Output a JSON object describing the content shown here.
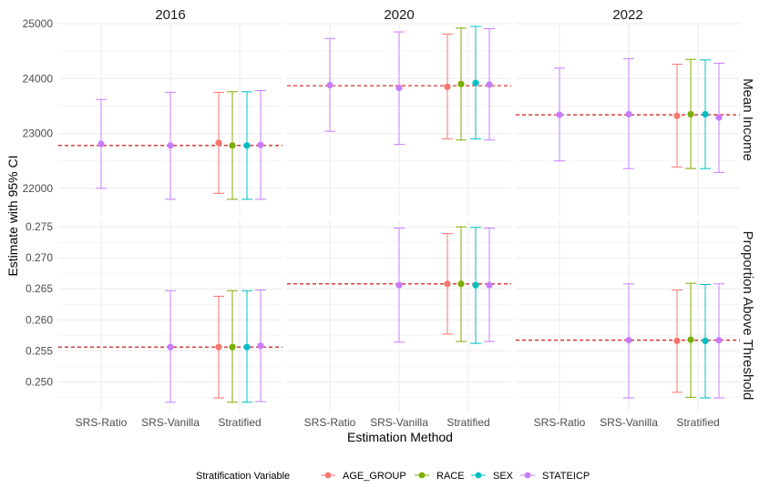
{
  "chart_data": {
    "type": "scatter",
    "subtype": "point-errorbar-facet",
    "xlabel": "Estimation Method",
    "ylabel": "Estimate with 95% CI",
    "categories": [
      "SRS-Ratio",
      "SRS-Vanilla",
      "Stratified"
    ],
    "columns": [
      "2016",
      "2020",
      "2022"
    ],
    "rows": [
      {
        "key": "income",
        "label": "Mean Income",
        "ylim": [
          21500,
          25000
        ],
        "ticks": [
          22000,
          23000,
          24000,
          25000
        ],
        "tick_labels": [
          "22000",
          "23000",
          "24000",
          "25000"
        ]
      },
      {
        "key": "prop",
        "label": "Proportion Above Threshold",
        "ylim": [
          0.2452,
          0.2762
        ],
        "ticks": [
          0.25,
          0.255,
          0.26,
          0.265,
          0.27,
          0.275
        ],
        "tick_labels": [
          "0.250",
          "0.255",
          "0.260",
          "0.265",
          "0.270",
          "0.275"
        ]
      }
    ],
    "legend": {
      "title": "Stratification Variable",
      "position": "bottom",
      "entries": [
        {
          "name": "AGE_GROUP",
          "color": "#F8766D"
        },
        {
          "name": "RACE",
          "color": "#7CAE00"
        },
        {
          "name": "SEX",
          "color": "#00BFC4"
        },
        {
          "name": "STATEICP",
          "color": "#C77CFF"
        }
      ]
    },
    "reference_line_color": "#CC0000",
    "panels": [
      {
        "row": "income",
        "column": "2016",
        "reference": 22780,
        "points": [
          {
            "category": "SRS-Ratio",
            "series": "STATEICP",
            "estimate": 22810,
            "lower": 22000,
            "upper": 23620
          },
          {
            "category": "SRS-Vanilla",
            "series": "STATEICP",
            "estimate": 22780,
            "lower": 21800,
            "upper": 23750
          },
          {
            "category": "Stratified",
            "series": "AGE_GROUP",
            "estimate": 22830,
            "lower": 21910,
            "upper": 23750
          },
          {
            "category": "Stratified",
            "series": "RACE",
            "estimate": 22780,
            "lower": 21800,
            "upper": 23760
          },
          {
            "category": "Stratified",
            "series": "SEX",
            "estimate": 22780,
            "lower": 21800,
            "upper": 23760
          },
          {
            "category": "Stratified",
            "series": "STATEICP",
            "estimate": 22790,
            "lower": 21800,
            "upper": 23780
          }
        ]
      },
      {
        "row": "income",
        "column": "2020",
        "reference": 23870,
        "points": [
          {
            "category": "SRS-Ratio",
            "series": "STATEICP",
            "estimate": 23880,
            "lower": 23040,
            "upper": 24730
          },
          {
            "category": "SRS-Vanilla",
            "series": "STATEICP",
            "estimate": 23830,
            "lower": 22800,
            "upper": 24850
          },
          {
            "category": "Stratified",
            "series": "AGE_GROUP",
            "estimate": 23850,
            "lower": 22900,
            "upper": 24810
          },
          {
            "category": "Stratified",
            "series": "RACE",
            "estimate": 23900,
            "lower": 22880,
            "upper": 24920
          },
          {
            "category": "Stratified",
            "series": "SEX",
            "estimate": 23920,
            "lower": 22900,
            "upper": 24950
          },
          {
            "category": "Stratified",
            "series": "STATEICP",
            "estimate": 23890,
            "lower": 22880,
            "upper": 24910
          }
        ]
      },
      {
        "row": "income",
        "column": "2022",
        "reference": 23340,
        "points": [
          {
            "category": "SRS-Ratio",
            "series": "STATEICP",
            "estimate": 23340,
            "lower": 22500,
            "upper": 24190
          },
          {
            "category": "SRS-Vanilla",
            "series": "STATEICP",
            "estimate": 23350,
            "lower": 22360,
            "upper": 24360
          },
          {
            "category": "Stratified",
            "series": "AGE_GROUP",
            "estimate": 23320,
            "lower": 22390,
            "upper": 24260
          },
          {
            "category": "Stratified",
            "series": "RACE",
            "estimate": 23350,
            "lower": 22360,
            "upper": 24350
          },
          {
            "category": "Stratified",
            "series": "SEX",
            "estimate": 23350,
            "lower": 22360,
            "upper": 24340
          },
          {
            "category": "Stratified",
            "series": "STATEICP",
            "estimate": 23290,
            "lower": 22290,
            "upper": 24280
          }
        ]
      },
      {
        "row": "prop",
        "column": "2016",
        "reference": 0.2556,
        "points": [
          {
            "category": "SRS-Vanilla",
            "series": "STATEICP",
            "estimate": 0.2556,
            "lower": 0.2467,
            "upper": 0.2647
          },
          {
            "category": "Stratified",
            "series": "AGE_GROUP",
            "estimate": 0.2556,
            "lower": 0.2474,
            "upper": 0.2638
          },
          {
            "category": "Stratified",
            "series": "RACE",
            "estimate": 0.2556,
            "lower": 0.2467,
            "upper": 0.2647
          },
          {
            "category": "Stratified",
            "series": "SEX",
            "estimate": 0.2556,
            "lower": 0.2467,
            "upper": 0.2647
          },
          {
            "category": "Stratified",
            "series": "STATEICP",
            "estimate": 0.2558,
            "lower": 0.2468,
            "upper": 0.2648
          }
        ]
      },
      {
        "row": "prop",
        "column": "2020",
        "reference": 0.2658,
        "points": [
          {
            "category": "SRS-Vanilla",
            "series": "STATEICP",
            "estimate": 0.2656,
            "lower": 0.2564,
            "upper": 0.2748
          },
          {
            "category": "Stratified",
            "series": "AGE_GROUP",
            "estimate": 0.2658,
            "lower": 0.2577,
            "upper": 0.2739
          },
          {
            "category": "Stratified",
            "series": "RACE",
            "estimate": 0.2658,
            "lower": 0.2565,
            "upper": 0.275
          },
          {
            "category": "Stratified",
            "series": "SEX",
            "estimate": 0.2656,
            "lower": 0.2562,
            "upper": 0.2749
          },
          {
            "category": "Stratified",
            "series": "STATEICP",
            "estimate": 0.2656,
            "lower": 0.2565,
            "upper": 0.2748
          }
        ]
      },
      {
        "row": "prop",
        "column": "2022",
        "reference": 0.2567,
        "points": [
          {
            "category": "SRS-Vanilla",
            "series": "STATEICP",
            "estimate": 0.2567,
            "lower": 0.2474,
            "upper": 0.2658
          },
          {
            "category": "Stratified",
            "series": "AGE_GROUP",
            "estimate": 0.2566,
            "lower": 0.2483,
            "upper": 0.2648
          },
          {
            "category": "Stratified",
            "series": "RACE",
            "estimate": 0.2568,
            "lower": 0.2475,
            "upper": 0.2659
          },
          {
            "category": "Stratified",
            "series": "SEX",
            "estimate": 0.2566,
            "lower": 0.2474,
            "upper": 0.2657
          },
          {
            "category": "Stratified",
            "series": "STATEICP",
            "estimate": 0.2567,
            "lower": 0.2474,
            "upper": 0.2658
          }
        ]
      }
    ]
  }
}
